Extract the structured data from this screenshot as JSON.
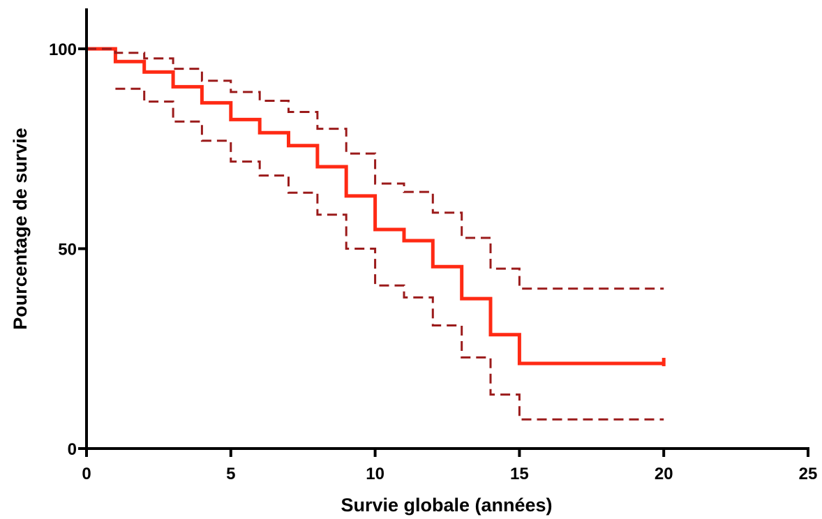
{
  "chart_data": {
    "type": "line",
    "step": true,
    "title": "",
    "xlabel": "Survie globale (années)",
    "ylabel": "Pourcentage de survie",
    "xlim": [
      0,
      25
    ],
    "ylim": [
      0,
      100
    ],
    "xticks": [
      0,
      5,
      10,
      15,
      20,
      25
    ],
    "yticks": [
      0,
      50,
      100
    ],
    "grid": false,
    "legend": "none",
    "colors": {
      "survival": "#ff2a14",
      "ci": "#9b1b1b",
      "axis": "#000000"
    },
    "series": [
      {
        "role": "survival",
        "style": "solid",
        "x": [
          0,
          1,
          2,
          3,
          4,
          5,
          6,
          7,
          8,
          9,
          10,
          11,
          12,
          13,
          14,
          15,
          20
        ],
        "y": [
          100,
          96.8,
          94.2,
          90.5,
          86.5,
          82.3,
          79,
          75.8,
          70.5,
          63.2,
          54.8,
          52,
          45.5,
          37.5,
          28.5,
          21.3,
          21.3
        ]
      },
      {
        "role": "ci-upper",
        "style": "dashed",
        "x": [
          0,
          1,
          2,
          3,
          4,
          5,
          6,
          7,
          8,
          9,
          10,
          11,
          12,
          13,
          14,
          15,
          20
        ],
        "y": [
          100,
          99,
          97.6,
          95,
          92,
          89.2,
          87,
          84.2,
          80,
          73.8,
          66.3,
          64.2,
          59,
          52.7,
          45,
          40,
          40
        ]
      },
      {
        "role": "ci-lower",
        "style": "dashed",
        "x": [
          1,
          2,
          3,
          4,
          5,
          6,
          7,
          8,
          9,
          10,
          11,
          12,
          13,
          14,
          15,
          20
        ],
        "y": [
          90,
          86.8,
          81.8,
          77,
          71.8,
          68.3,
          64,
          58.5,
          50,
          40.8,
          37.8,
          30.8,
          22.8,
          13.5,
          7.3,
          7.3
        ]
      }
    ]
  }
}
